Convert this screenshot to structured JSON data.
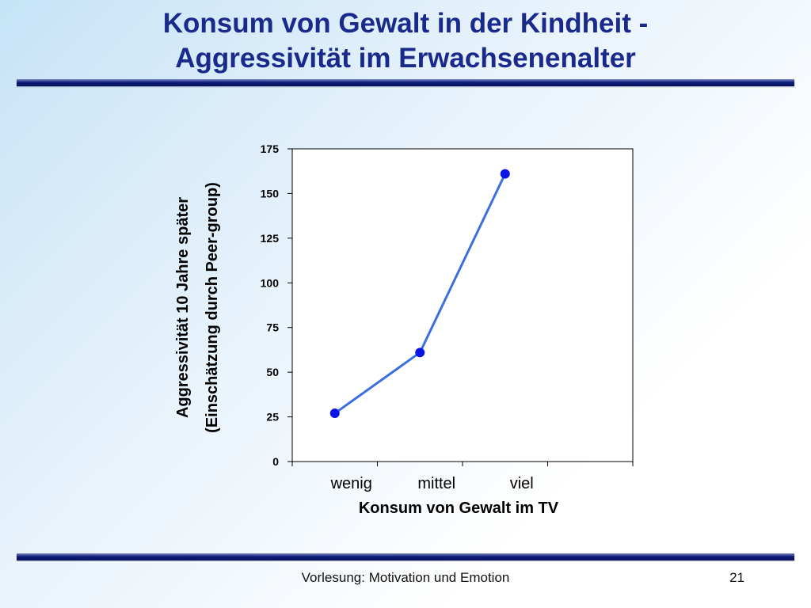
{
  "slide": {
    "title_line1": "Konsum von Gewalt in der Kindheit -",
    "title_line2": "Aggressivität im Erwachsenenalter",
    "footer_lecture": "Vorlesung: Motivation und Emotion",
    "page_number": "21"
  },
  "colors": {
    "title": "#1a2a8c",
    "rule": "#0f1d7a",
    "series_line": "#3b6fe0",
    "series_marker": "#0a14e6"
  },
  "chart_data": {
    "type": "line",
    "categories": [
      "wenig",
      "mittel",
      "viel"
    ],
    "series": [
      {
        "values": [
          27,
          61,
          161
        ]
      }
    ],
    "xlabel": "Konsum von Gewalt im TV",
    "ylabel_line1": "Aggressivität 10 Jahre später",
    "ylabel_line2": "(Einschätzung durch Peer-group)",
    "ylim": [
      0,
      175
    ],
    "yticks": [
      0,
      25,
      50,
      75,
      100,
      125,
      150,
      175
    ],
    "grid": false,
    "legend": "none"
  }
}
